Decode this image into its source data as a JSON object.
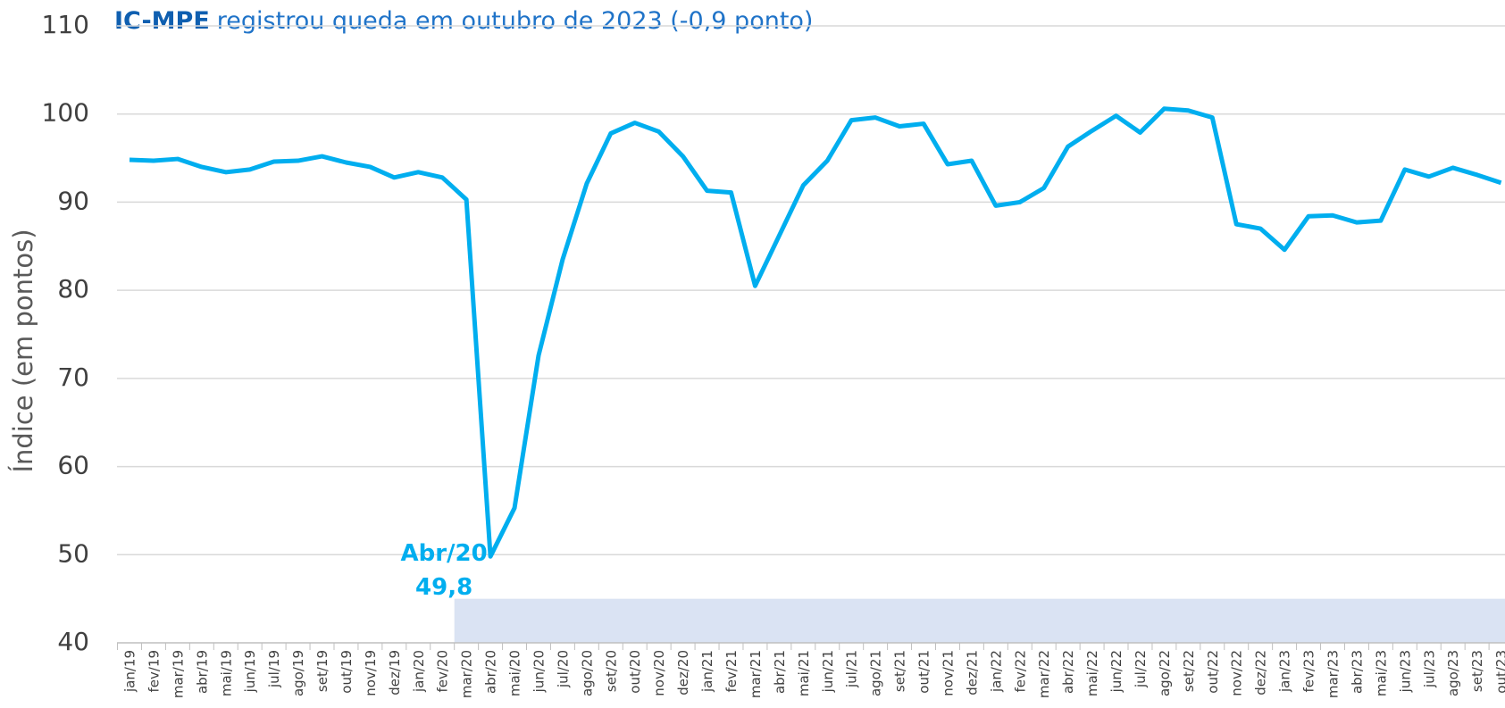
{
  "chart_data": {
    "type": "line",
    "title": [
      "IC-MPE",
      "registrou queda em outubro de 2023 (-0,9 ponto)"
    ],
    "y_label": "Índice (em pontos)",
    "categories": [
      "jan/19",
      "fev/19",
      "mar/19",
      "abr/19",
      "mai/19",
      "jun/19",
      "jul/19",
      "ago/19",
      "set/19",
      "out/19",
      "nov/19",
      "dez/19",
      "jan/20",
      "fev/20",
      "mar/20",
      "abr/20",
      "mai/20",
      "jun/20",
      "jul/20",
      "ago/20",
      "set/20",
      "out/20",
      "nov/20",
      "dez/20",
      "jan/21",
      "fev/21",
      "mar/21",
      "abr/21",
      "mai/21",
      "jun/21",
      "jul/21",
      "ago/21",
      "set/21",
      "out/21",
      "nov/21",
      "dez/21",
      "jan/22",
      "fev/22",
      "mar/22",
      "abr/22",
      "mai/22",
      "jun/22",
      "jul/22",
      "ago/22",
      "set/22",
      "out/22",
      "nov/22",
      "dez/22",
      "jan/23",
      "fev/23",
      "mar/23",
      "abr/23",
      "mai/23",
      "jun/23",
      "jul/23",
      "ago/23",
      "set/23",
      "out/23"
    ],
    "series": [
      {
        "name": "IC-MPE",
        "color": "#00aeef",
        "values": [
          94.8,
          94.7,
          94.9,
          94.0,
          93.4,
          93.7,
          94.6,
          94.7,
          95.2,
          94.5,
          94.0,
          92.8,
          93.4,
          92.8,
          90.3,
          49.8,
          55.3,
          72.6,
          83.5,
          92.1,
          97.8,
          99.0,
          98.0,
          95.2,
          91.3,
          91.1,
          80.5,
          86.2,
          91.9,
          94.7,
          99.3,
          99.6,
          98.6,
          98.9,
          94.3,
          94.7,
          89.6,
          90.0,
          91.6,
          96.3,
          98.1,
          99.8,
          97.9,
          100.6,
          100.4,
          99.6,
          87.5,
          87.0,
          84.6,
          88.4,
          88.5,
          87.7,
          87.9,
          93.7,
          92.9,
          93.9,
          93.1,
          92.2
        ],
        "value_labels": [
          null,
          null,
          null,
          null,
          null,
          null,
          null,
          null,
          null,
          null,
          null,
          null,
          null,
          null,
          null,
          "49,8",
          null,
          null,
          null,
          null,
          null,
          null,
          null,
          null,
          null,
          null,
          null,
          null,
          null,
          null,
          null,
          null,
          null,
          null,
          null,
          null,
          null,
          null,
          null,
          null,
          null,
          null,
          null,
          null,
          null,
          null,
          null,
          null,
          null,
          null,
          null,
          null,
          null,
          null,
          null,
          null,
          null,
          null
        ]
      }
    ],
    "annotation": "Abr/20",
    "band": {
      "from": "mar/20",
      "ylim": [
        40,
        45
      ],
      "color": "#dae3f3"
    },
    "ylim": [
      40,
      110
    ],
    "yticks": [
      40,
      50,
      60,
      70,
      80,
      90,
      100,
      110
    ],
    "grid": true
  }
}
